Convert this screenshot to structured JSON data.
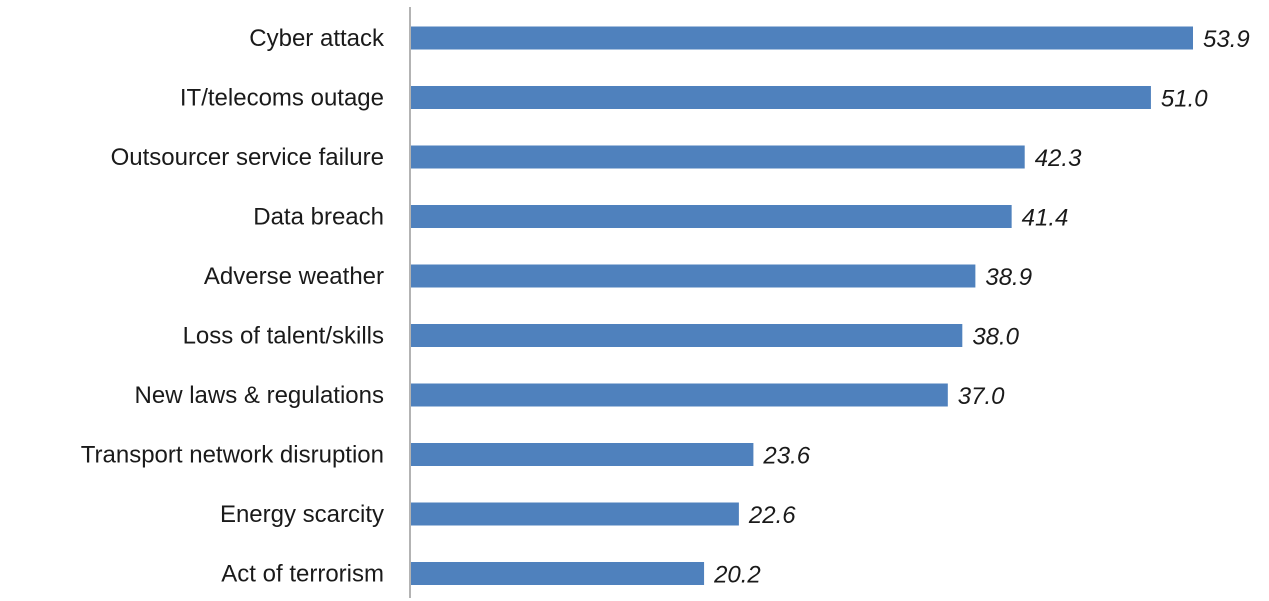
{
  "chart_data": {
    "type": "bar",
    "orientation": "horizontal",
    "title": "",
    "xlabel": "",
    "ylabel": "",
    "categories": [
      "Cyber attack",
      "IT/telecoms outage",
      "Outsourcer service failure",
      "Data breach",
      "Adverse weather",
      "Loss of talent/skills",
      "New laws & regulations",
      "Transport network disruption",
      "Energy scarcity",
      "Act of terrorism"
    ],
    "values": [
      53.9,
      51.0,
      42.3,
      41.4,
      38.9,
      38.0,
      37.0,
      23.6,
      22.6,
      20.2
    ],
    "value_labels": [
      "53.9",
      "51.0",
      "42.3",
      "41.4",
      "38.9",
      "38.0",
      "37.0",
      "23.6",
      "22.6",
      "20.2"
    ],
    "xlim": [
      0,
      54
    ],
    "grid": false,
    "legend": "none",
    "bar_color": "#4f81bd"
  }
}
